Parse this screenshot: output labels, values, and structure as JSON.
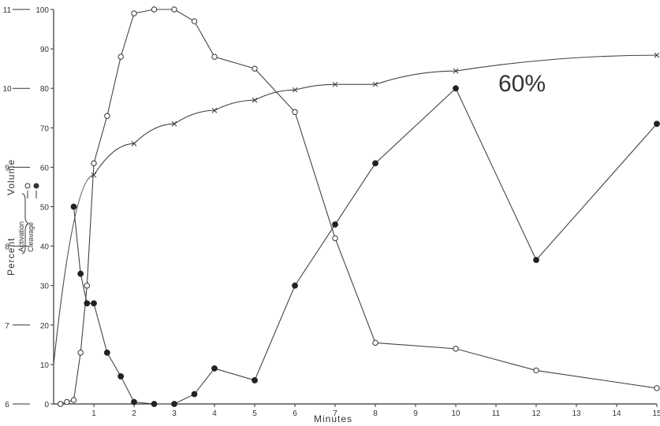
{
  "chart_data": {
    "type": "line",
    "annotation": "60%",
    "xlabel": "Minutes",
    "ylabel_percent": "Percent",
    "ylabel_volume": "Volume",
    "legend": {
      "activation": "Activation",
      "cleavage": "Cleavage"
    },
    "xlim": [
      0,
      15
    ],
    "ylim_percent": [
      0,
      100
    ],
    "ylim_volume": [
      6,
      11
    ],
    "x_ticks": [
      "1",
      "2",
      "3",
      "4",
      "5",
      "6",
      "7",
      "8",
      "9",
      "10",
      "11",
      "12",
      "13",
      "14",
      "15"
    ],
    "y_ticks_percent": [
      "0",
      "10",
      "20",
      "30",
      "40",
      "50",
      "60",
      "70",
      "80",
      "90",
      "100"
    ],
    "y_ticks_volume": [
      "6",
      "7",
      "8",
      "9",
      "10",
      "11"
    ],
    "series": [
      {
        "name": "Activation",
        "marker": "open-circle",
        "points": [
          [
            0.17,
            0
          ],
          [
            0.33,
            0.5
          ],
          [
            0.5,
            1
          ],
          [
            0.67,
            13
          ],
          [
            0.83,
            30
          ],
          [
            1,
            61
          ],
          [
            1.33,
            73
          ],
          [
            1.67,
            88
          ],
          [
            2,
            99
          ],
          [
            2.5,
            100
          ],
          [
            3,
            100
          ],
          [
            3.5,
            97
          ],
          [
            4,
            88
          ],
          [
            5,
            85
          ],
          [
            6,
            74
          ],
          [
            7,
            42
          ],
          [
            8,
            15.5
          ],
          [
            10,
            14
          ],
          [
            12,
            8.5
          ],
          [
            15,
            4
          ]
        ]
      },
      {
        "name": "Cleavage",
        "marker": "filled-circle",
        "points": [
          [
            0.5,
            50
          ],
          [
            0.67,
            33
          ],
          [
            0.83,
            25.5
          ],
          [
            1,
            25.5
          ],
          [
            1.33,
            13
          ],
          [
            1.67,
            7
          ],
          [
            2,
            0.5
          ],
          [
            2.5,
            0
          ],
          [
            3,
            0
          ],
          [
            3.5,
            2.5
          ],
          [
            4,
            9
          ],
          [
            5,
            6
          ],
          [
            6,
            30
          ],
          [
            7,
            45.5
          ],
          [
            8,
            61
          ],
          [
            10,
            80
          ],
          [
            12,
            36.5
          ],
          [
            15,
            71
          ]
        ]
      },
      {
        "name": "Volume",
        "marker": "x",
        "points": [
          [
            1,
            8.9
          ],
          [
            2,
            9.3
          ],
          [
            3,
            9.55
          ],
          [
            4,
            9.72
          ],
          [
            5,
            9.85
          ],
          [
            6,
            9.98
          ],
          [
            7,
            10.05
          ],
          [
            8,
            10.05
          ],
          [
            10,
            10.22
          ],
          [
            15,
            10.42
          ]
        ]
      }
    ]
  }
}
